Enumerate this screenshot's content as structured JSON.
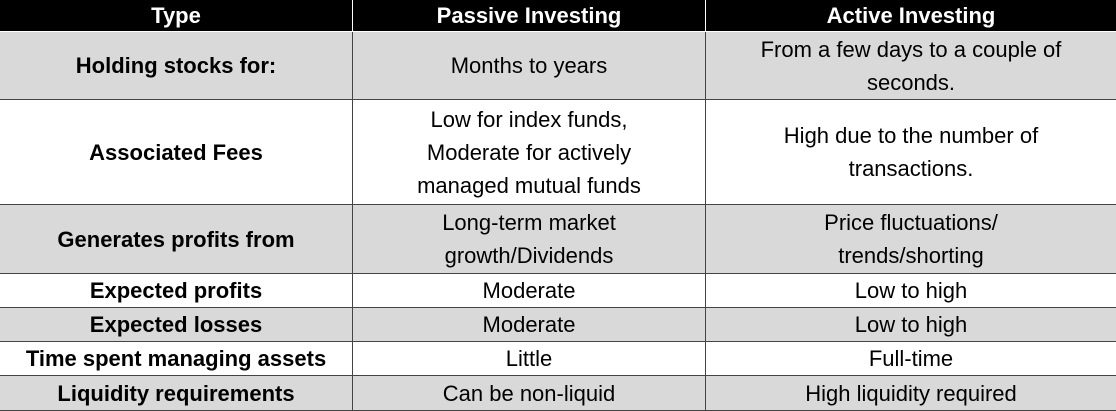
{
  "table": {
    "header": [
      "Type",
      "Passive Investing",
      "Active Investing"
    ],
    "rows": [
      [
        [
          "Holding stocks for:"
        ],
        [
          "Months to years"
        ],
        [
          "From a few days to a couple of",
          "seconds."
        ]
      ],
      [
        [
          "Associated Fees"
        ],
        [
          "Low for index funds,",
          "Moderate for actively",
          "managed mutual funds"
        ],
        [
          "High due to the number of",
          "transactions."
        ]
      ],
      [
        [
          "Generates profits from"
        ],
        [
          "Long-term market",
          "growth/Dividends"
        ],
        [
          "Price fluctuations/",
          "trends/shorting"
        ]
      ],
      [
        [
          "Expected profits"
        ],
        [
          "Moderate"
        ],
        [
          "Low to high"
        ]
      ],
      [
        [
          "Expected losses"
        ],
        [
          "Moderate"
        ],
        [
          "Low to high"
        ]
      ],
      [
        [
          "Time spent managing assets"
        ],
        [
          "Little"
        ],
        [
          "Full-time"
        ]
      ],
      [
        [
          "Liquidity requirements"
        ],
        [
          "Can be non-liquid"
        ],
        [
          "High liquidity required"
        ]
      ]
    ]
  }
}
